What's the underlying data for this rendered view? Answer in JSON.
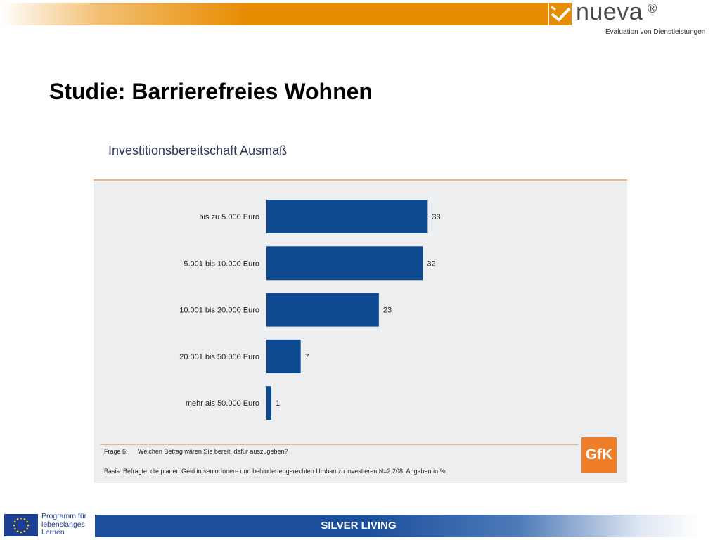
{
  "header": {
    "logo_text": "nueva",
    "logo_registered": "®",
    "logo_subtitle": "Evaluation von Dienstleistungen",
    "brand_color": "#e88c00"
  },
  "slide": {
    "title": "Studie: Barrierefreies Wohnen"
  },
  "chart_header": "Investitionsbereitschaft Ausmaß",
  "chart_data": {
    "type": "bar",
    "orientation": "horizontal",
    "categories": [
      "bis zu 5.000 Euro",
      "5.001 bis 10.000 Euro",
      "10.001 bis 20.000 Euro",
      "20.001 bis 50.000 Euro",
      "mehr als 50.000 Euro"
    ],
    "values": [
      33,
      32,
      23,
      7,
      1
    ],
    "title": "Investitionsbereitschaft Ausmaß",
    "xlabel": "",
    "ylabel": "",
    "xlim": [
      0,
      100
    ],
    "grid": false,
    "bar_color": "#0d4a91"
  },
  "notes": {
    "frage_label": "Frage 6:",
    "frage_text": "Welchen Betrag wären Sie bereit, dafür auszugeben?",
    "basis_text": "Basis: Befragte, die planen Geld in seniorInnen- und behindertengerechten Umbau zu investieren N=2.208, Angaben in %",
    "gfk_logo": "GfK",
    "gfk_color": "#f07d28"
  },
  "footer": {
    "eu_text": "Programm für lebenslanges Lernen",
    "title": "SILVER LIVING",
    "bar_color": "#1c4f9c"
  }
}
